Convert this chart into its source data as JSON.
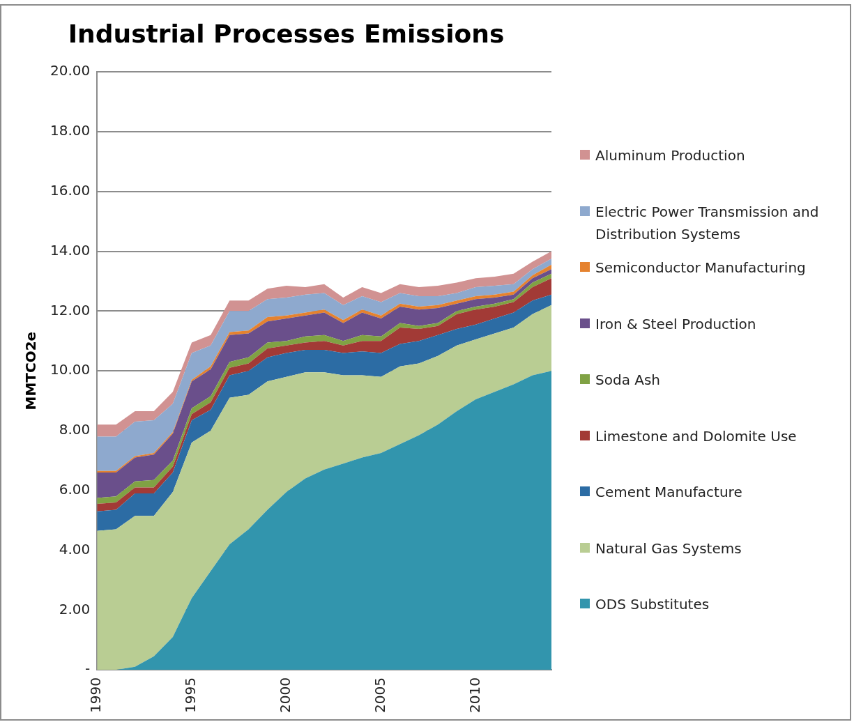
{
  "chart_data": {
    "type": "area",
    "title": "Industrial Processes Emissions",
    "ylabel": "MMTCO2e",
    "stacked": true,
    "legend": "right",
    "grid": "y",
    "x": [
      1990,
      1991,
      1992,
      1993,
      1994,
      1995,
      1996,
      1997,
      1998,
      1999,
      2000,
      2001,
      2002,
      2003,
      2004,
      2005,
      2006,
      2007,
      2008,
      2009,
      2010,
      2011,
      2012,
      2013,
      2014
    ],
    "xlim": [
      1990,
      2014
    ],
    "xticks": [
      1990,
      1995,
      2000,
      2005,
      2010
    ],
    "ylim": [
      0,
      20
    ],
    "yticks": [
      {
        "value": 0,
        "label": "-"
      },
      {
        "value": 2,
        "label": "2.00"
      },
      {
        "value": 4,
        "label": "4.00"
      },
      {
        "value": 6,
        "label": "6.00"
      },
      {
        "value": 8,
        "label": "8.00"
      },
      {
        "value": 10,
        "label": "10.00"
      },
      {
        "value": 12,
        "label": "12.00"
      },
      {
        "value": 14,
        "label": "14.00"
      },
      {
        "value": 16,
        "label": "16.00"
      },
      {
        "value": 18,
        "label": "18.00"
      },
      {
        "value": 20,
        "label": "20.00"
      }
    ],
    "series": [
      {
        "name": "ODS Substitutes",
        "color": "#3295ad",
        "values": [
          0,
          0,
          0.1,
          0.45,
          1.1,
          2.4,
          3.3,
          4.2,
          4.7,
          5.35,
          5.95,
          6.4,
          6.7,
          6.9,
          7.1,
          7.25,
          7.55,
          7.85,
          8.2,
          8.65,
          9.05,
          9.3,
          9.55,
          9.85,
          10.0
        ]
      },
      {
        "name": "Natural Gas Systems",
        "color": "#b9cd93",
        "values": [
          4.65,
          4.7,
          5.05,
          4.7,
          4.85,
          5.2,
          4.7,
          4.9,
          4.5,
          4.3,
          3.85,
          3.55,
          3.25,
          2.95,
          2.75,
          2.55,
          2.6,
          2.4,
          2.3,
          2.2,
          2.0,
          1.95,
          1.9,
          2.05,
          2.2
        ]
      },
      {
        "name": "Cement Manufacture",
        "color": "#2c6ca4",
        "values": [
          0.65,
          0.65,
          0.75,
          0.75,
          0.65,
          0.75,
          0.7,
          0.75,
          0.8,
          0.8,
          0.8,
          0.75,
          0.75,
          0.75,
          0.8,
          0.8,
          0.75,
          0.75,
          0.7,
          0.55,
          0.5,
          0.5,
          0.5,
          0.45,
          0.35
        ]
      },
      {
        "name": "Limestone and Dolomite Use",
        "color": "#a23a36",
        "values": [
          0.25,
          0.25,
          0.2,
          0.2,
          0.2,
          0.2,
          0.25,
          0.25,
          0.25,
          0.3,
          0.25,
          0.25,
          0.3,
          0.25,
          0.35,
          0.4,
          0.55,
          0.4,
          0.3,
          0.5,
          0.5,
          0.4,
          0.35,
          0.45,
          0.55
        ]
      },
      {
        "name": "Soda Ash",
        "color": "#80a244",
        "values": [
          0.2,
          0.2,
          0.2,
          0.25,
          0.2,
          0.2,
          0.2,
          0.2,
          0.2,
          0.2,
          0.15,
          0.2,
          0.2,
          0.15,
          0.2,
          0.15,
          0.15,
          0.1,
          0.1,
          0.1,
          0.1,
          0.1,
          0.1,
          0.15,
          0.15
        ]
      },
      {
        "name": "Iron & Steel Production",
        "color": "#6a4f8b",
        "values": [
          0.85,
          0.8,
          0.8,
          0.85,
          0.9,
          0.9,
          0.9,
          0.9,
          0.8,
          0.7,
          0.75,
          0.7,
          0.75,
          0.6,
          0.75,
          0.6,
          0.55,
          0.55,
          0.5,
          0.25,
          0.25,
          0.2,
          0.15,
          0.15,
          0.15
        ]
      },
      {
        "name": "Semiconductor Manufacturing",
        "color": "#e5822f",
        "values": [
          0.05,
          0.05,
          0.05,
          0.05,
          0.05,
          0.05,
          0.1,
          0.1,
          0.1,
          0.15,
          0.1,
          0.1,
          0.1,
          0.1,
          0.1,
          0.1,
          0.1,
          0.1,
          0.1,
          0.1,
          0.1,
          0.1,
          0.1,
          0.1,
          0.15
        ]
      },
      {
        "name": "Electric Power Transmission and Distribution Systems",
        "color": "#8ea9ce",
        "values": [
          1.15,
          1.15,
          1.15,
          1.1,
          0.95,
          0.9,
          0.7,
          0.7,
          0.65,
          0.6,
          0.6,
          0.6,
          0.55,
          0.5,
          0.45,
          0.45,
          0.35,
          0.35,
          0.3,
          0.25,
          0.3,
          0.3,
          0.25,
          0.2,
          0.2
        ]
      },
      {
        "name": "Aluminum Production",
        "color": "#d19292",
        "values": [
          0.4,
          0.4,
          0.35,
          0.3,
          0.4,
          0.35,
          0.35,
          0.35,
          0.35,
          0.35,
          0.4,
          0.25,
          0.3,
          0.25,
          0.3,
          0.3,
          0.3,
          0.3,
          0.35,
          0.35,
          0.3,
          0.3,
          0.35,
          0.25,
          0.25
        ]
      }
    ]
  }
}
